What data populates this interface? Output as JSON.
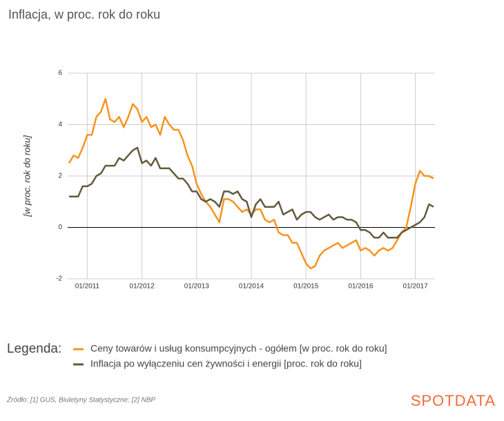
{
  "chart_data": {
    "type": "line",
    "title": "Inflacja, w proc. rok do roku",
    "y_label": "[w proc. rok do roku]",
    "legend_title": "Legenda:",
    "x": [
      "09/2010",
      "10/2010",
      "11/2010",
      "12/2010",
      "01/2011",
      "02/2011",
      "03/2011",
      "04/2011",
      "05/2011",
      "06/2011",
      "07/2011",
      "08/2011",
      "09/2011",
      "10/2011",
      "11/2011",
      "12/2011",
      "01/2012",
      "02/2012",
      "03/2012",
      "04/2012",
      "05/2012",
      "06/2012",
      "07/2012",
      "08/2012",
      "09/2012",
      "10/2012",
      "11/2012",
      "12/2012",
      "01/2013",
      "02/2013",
      "03/2013",
      "04/2013",
      "05/2013",
      "06/2013",
      "07/2013",
      "08/2013",
      "09/2013",
      "10/2013",
      "11/2013",
      "12/2013",
      "01/2014",
      "02/2014",
      "03/2014",
      "04/2014",
      "05/2014",
      "06/2014",
      "07/2014",
      "08/2014",
      "09/2014",
      "10/2014",
      "11/2014",
      "12/2014",
      "01/2015",
      "02/2015",
      "03/2015",
      "04/2015",
      "05/2015",
      "06/2015",
      "07/2015",
      "08/2015",
      "09/2015",
      "10/2015",
      "11/2015",
      "12/2015",
      "01/2016",
      "02/2016",
      "03/2016",
      "04/2016",
      "05/2016",
      "06/2016",
      "07/2016",
      "08/2016",
      "09/2016",
      "10/2016",
      "11/2016",
      "12/2016",
      "01/2017",
      "02/2017",
      "03/2017",
      "04/2017",
      "05/2017"
    ],
    "xticks": [
      "01/2011",
      "01/2012",
      "01/2013",
      "01/2014",
      "01/2015",
      "01/2016",
      "01/2017"
    ],
    "ylim": [
      -2,
      6
    ],
    "yticks": [
      -2,
      0,
      2,
      4,
      6
    ],
    "grid": true,
    "series": [
      {
        "name": "Ceny towarów i usług konsumpcyjnych - ogółem [w proc. rok do roku]",
        "color": "#f7931e",
        "values": [
          2.5,
          2.8,
          2.7,
          3.1,
          3.6,
          3.6,
          4.3,
          4.5,
          5.0,
          4.2,
          4.1,
          4.3,
          3.9,
          4.3,
          4.8,
          4.6,
          4.1,
          4.3,
          3.9,
          4.0,
          3.6,
          4.3,
          4.0,
          3.8,
          3.8,
          3.4,
          2.8,
          2.4,
          1.7,
          1.3,
          1.0,
          0.8,
          0.5,
          0.2,
          1.1,
          1.1,
          1.0,
          0.8,
          0.6,
          0.7,
          0.5,
          0.7,
          0.7,
          0.3,
          0.2,
          0.3,
          -0.2,
          -0.3,
          -0.3,
          -0.6,
          -0.6,
          -1.0,
          -1.4,
          -1.6,
          -1.5,
          -1.1,
          -0.9,
          -0.8,
          -0.7,
          -0.6,
          -0.8,
          -0.7,
          -0.6,
          -0.5,
          -0.9,
          -0.8,
          -0.9,
          -1.1,
          -0.9,
          -0.8,
          -0.9,
          -0.8,
          -0.5,
          -0.2,
          0.0,
          0.8,
          1.7,
          2.2,
          2.0,
          2.0,
          1.9
        ]
      },
      {
        "name": "Inflacja po wyłączeniu cen żywności i energii [proc. rok do roku]",
        "color": "#625a3f",
        "values": [
          1.2,
          1.2,
          1.2,
          1.6,
          1.6,
          1.7,
          2.0,
          2.1,
          2.4,
          2.4,
          2.4,
          2.7,
          2.6,
          2.8,
          3.0,
          3.1,
          2.5,
          2.6,
          2.4,
          2.7,
          2.3,
          2.3,
          2.3,
          2.1,
          1.9,
          1.9,
          1.7,
          1.4,
          1.4,
          1.1,
          1.0,
          1.1,
          1.0,
          0.8,
          1.4,
          1.4,
          1.3,
          1.4,
          1.1,
          1.0,
          0.4,
          0.9,
          1.1,
          0.8,
          0.8,
          0.8,
          1.0,
          0.5,
          0.6,
          0.7,
          0.3,
          0.5,
          0.6,
          0.6,
          0.4,
          0.3,
          0.4,
          0.5,
          0.3,
          0.4,
          0.4,
          0.3,
          0.3,
          0.2,
          -0.1,
          -0.1,
          -0.2,
          -0.4,
          -0.4,
          -0.2,
          -0.4,
          -0.4,
          -0.4,
          -0.2,
          -0.1,
          0.0,
          0.1,
          0.2,
          0.4,
          0.9,
          0.8
        ]
      }
    ]
  },
  "source": "Źródło: [1] GUS, Biuletyny Statystyczne; [2] NBP",
  "logo": "SPOTDATA"
}
